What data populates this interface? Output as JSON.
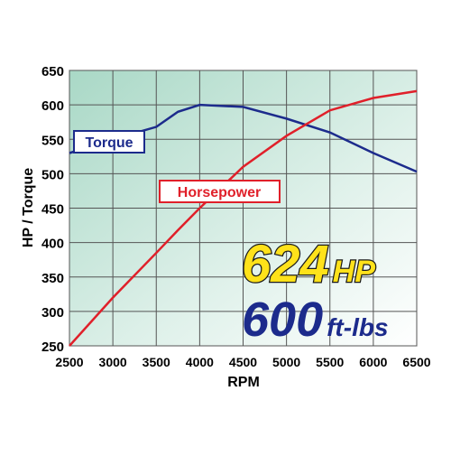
{
  "chart_data": {
    "type": "line",
    "x_label": "RPM",
    "y_label": "HP / Torque",
    "x": [
      2500,
      3000,
      3500,
      3750,
      4000,
      4500,
      5000,
      5500,
      6000,
      6500
    ],
    "series": [
      {
        "name": "Torque",
        "color": "#1c2b8c",
        "values": [
          530,
          550,
          568,
          590,
          600,
          597,
          580,
          560,
          530,
          503
        ]
      },
      {
        "name": "Horsepower",
        "color": "#e0202a",
        "values": [
          250,
          320,
          385,
          418,
          450,
          510,
          555,
          592,
          610,
          620
        ]
      }
    ],
    "xlim": [
      2500,
      6500
    ],
    "xticks": [
      2500,
      3000,
      3500,
      4000,
      4500,
      5000,
      5500,
      6000,
      6500
    ],
    "ylim": [
      250,
      650
    ],
    "yticks": [
      250,
      300,
      350,
      400,
      450,
      500,
      550,
      600,
      650
    ],
    "grid": true,
    "annotations": {
      "hp_number": "624",
      "hp_unit": "HP",
      "torque_number": "600",
      "torque_unit": "ft-lbs"
    }
  }
}
